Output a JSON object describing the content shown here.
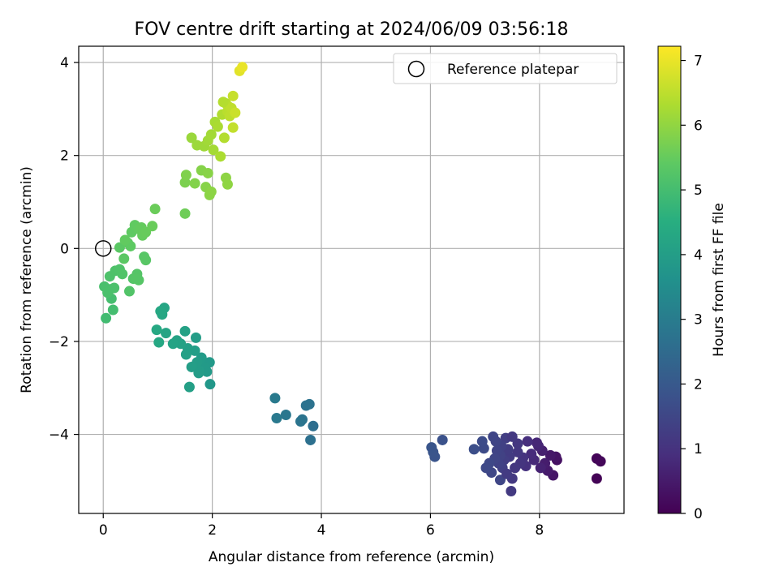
{
  "chart_data": {
    "type": "scatter",
    "title": "FOV centre drift starting at 2024/06/09 03:56:18",
    "xlabel": "Angular distance from reference (arcmin)",
    "ylabel": "Rotation from reference (arcmin)",
    "xlim": [
      -0.45,
      9.55
    ],
    "ylim": [
      -5.7,
      4.35
    ],
    "xticks": [
      0,
      2,
      4,
      6,
      8
    ],
    "yticks": [
      -4,
      -2,
      0,
      2,
      4
    ],
    "grid": true,
    "colormap": "viridis",
    "legend": {
      "placement": "upper right",
      "entries": [
        {
          "label": "Reference platepar",
          "marker": "open-circle",
          "x": 0,
          "y": 0
        }
      ]
    },
    "colorbar": {
      "label": "Hours from first FF file",
      "range": [
        0,
        7.22
      ],
      "ticks": [
        0,
        1,
        2,
        3,
        4,
        5,
        6,
        7
      ]
    },
    "points": [
      [
        9.05,
        -4.95,
        0.05
      ],
      [
        9.05,
        -4.52,
        0.08
      ],
      [
        9.12,
        -4.58,
        0.12
      ],
      [
        8.32,
        -4.55,
        0.3
      ],
      [
        8.3,
        -4.48,
        0.35
      ],
      [
        8.25,
        -4.88,
        0.4
      ],
      [
        8.2,
        -4.45,
        0.45
      ],
      [
        8.15,
        -4.78,
        0.5
      ],
      [
        8.1,
        -4.62,
        0.55
      ],
      [
        8.05,
        -4.35,
        0.6
      ],
      [
        8.02,
        -4.72,
        0.65
      ],
      [
        7.98,
        -4.25,
        0.7
      ],
      [
        7.95,
        -4.18,
        0.75
      ],
      [
        7.9,
        -4.55,
        0.8
      ],
      [
        7.85,
        -4.42,
        0.85
      ],
      [
        7.78,
        -4.15,
        0.9
      ],
      [
        7.75,
        -4.68,
        0.95
      ],
      [
        7.7,
        -4.5,
        1.0
      ],
      [
        7.65,
        -4.62,
        1.05
      ],
      [
        7.6,
        -4.38,
        1.1
      ],
      [
        7.55,
        -4.72,
        1.12
      ],
      [
        7.5,
        -4.95,
        1.15
      ],
      [
        7.48,
        -5.22,
        1.18
      ],
      [
        7.45,
        -4.48,
        1.2
      ],
      [
        7.42,
        -4.32,
        1.25
      ],
      [
        7.38,
        -4.08,
        1.28
      ],
      [
        7.35,
        -4.55,
        1.3
      ],
      [
        7.32,
        -4.72,
        1.33
      ],
      [
        7.3,
        -4.25,
        1.36
      ],
      [
        7.28,
        -4.45,
        1.38
      ],
      [
        7.25,
        -4.62,
        1.4
      ],
      [
        7.22,
        -4.35,
        1.42
      ],
      [
        7.2,
        -4.15,
        1.44
      ],
      [
        7.18,
        -4.52,
        1.46
      ],
      [
        7.15,
        -4.05,
        1.48
      ],
      [
        7.28,
        -4.98,
        1.5
      ],
      [
        7.12,
        -4.82,
        1.52
      ],
      [
        7.08,
        -4.62,
        1.55
      ],
      [
        7.02,
        -4.72,
        1.58
      ],
      [
        6.98,
        -4.3,
        1.62
      ],
      [
        6.95,
        -4.15,
        1.66
      ],
      [
        6.8,
        -4.32,
        1.7
      ],
      [
        7.4,
        -4.85,
        1.2
      ],
      [
        7.6,
        -4.2,
        1.1
      ],
      [
        7.5,
        -4.05,
        1.15
      ],
      [
        6.22,
        -4.12,
        1.8
      ],
      [
        6.08,
        -4.48,
        1.85
      ],
      [
        6.05,
        -4.38,
        1.88
      ],
      [
        6.02,
        -4.28,
        1.9
      ],
      [
        3.85,
        -3.82,
        2.6
      ],
      [
        3.8,
        -4.12,
        2.65
      ],
      [
        3.78,
        -3.35,
        2.7
      ],
      [
        3.72,
        -3.38,
        2.72
      ],
      [
        3.65,
        -3.68,
        2.75
      ],
      [
        3.62,
        -3.72,
        2.78
      ],
      [
        3.35,
        -3.58,
        2.85
      ],
      [
        3.18,
        -3.65,
        2.9
      ],
      [
        3.15,
        -3.22,
        2.95
      ],
      [
        1.96,
        -2.92,
        3.8
      ],
      [
        1.95,
        -2.45,
        3.85
      ],
      [
        1.9,
        -2.65,
        3.88
      ],
      [
        1.85,
        -2.55,
        3.9
      ],
      [
        1.8,
        -2.35,
        3.92
      ],
      [
        1.75,
        -2.62,
        3.94
      ],
      [
        1.72,
        -2.45,
        3.96
      ],
      [
        1.7,
        -1.92,
        3.98
      ],
      [
        1.68,
        -2.2,
        4.0
      ],
      [
        1.62,
        -2.55,
        4.02
      ],
      [
        1.58,
        -2.98,
        4.04
      ],
      [
        1.55,
        -2.15,
        4.06
      ],
      [
        1.52,
        -2.28,
        4.08
      ],
      [
        1.5,
        -1.78,
        4.1
      ],
      [
        1.42,
        -2.05,
        4.12
      ],
      [
        1.35,
        -1.98,
        4.14
      ],
      [
        1.28,
        -2.05,
        4.16
      ],
      [
        1.15,
        -1.82,
        4.2
      ],
      [
        1.12,
        -1.28,
        4.24
      ],
      [
        1.08,
        -1.42,
        4.26
      ],
      [
        1.05,
        -1.35,
        4.28
      ],
      [
        1.02,
        -2.02,
        4.3
      ],
      [
        0.98,
        -1.75,
        4.32
      ],
      [
        1.75,
        -2.68,
        3.95
      ],
      [
        0.05,
        -1.5,
        4.95
      ],
      [
        0.18,
        -1.32,
        5.0
      ],
      [
        0.15,
        -1.08,
        5.02
      ],
      [
        0.12,
        -0.88,
        5.05
      ],
      [
        0.02,
        -0.82,
        5.08
      ],
      [
        0.08,
        -0.95,
        5.1
      ],
      [
        0.2,
        -0.85,
        5.12
      ],
      [
        0.12,
        -0.6,
        5.14
      ],
      [
        0.22,
        -0.48,
        5.16
      ],
      [
        0.3,
        -0.45,
        5.18
      ],
      [
        0.35,
        -0.55,
        5.2
      ],
      [
        0.48,
        -0.92,
        5.22
      ],
      [
        0.55,
        -0.65,
        5.24
      ],
      [
        0.62,
        -0.55,
        5.26
      ],
      [
        0.65,
        -0.68,
        5.28
      ],
      [
        0.75,
        -0.18,
        5.3
      ],
      [
        0.78,
        -0.25,
        5.32
      ],
      [
        0.3,
        0.02,
        5.34
      ],
      [
        0.38,
        -0.22,
        5.36
      ],
      [
        0.45,
        0.12,
        5.38
      ],
      [
        0.5,
        0.05,
        5.4
      ],
      [
        0.52,
        0.35,
        5.42
      ],
      [
        0.58,
        0.5,
        5.44
      ],
      [
        0.65,
        0.42,
        5.46
      ],
      [
        0.7,
        0.45,
        5.48
      ],
      [
        0.72,
        0.28,
        5.5
      ],
      [
        0.78,
        0.35,
        5.52
      ],
      [
        0.9,
        0.48,
        5.54
      ],
      [
        0.95,
        0.85,
        5.56
      ],
      [
        1.5,
        0.75,
        5.6
      ],
      [
        0.4,
        0.18,
        5.45
      ],
      [
        0.6,
        -0.65,
        5.28
      ],
      [
        1.5,
        1.42,
        5.75
      ],
      [
        1.52,
        1.58,
        5.8
      ],
      [
        1.68,
        1.4,
        5.83
      ],
      [
        1.8,
        1.68,
        5.86
      ],
      [
        1.88,
        1.32,
        5.88
      ],
      [
        1.92,
        1.62,
        5.9
      ],
      [
        1.95,
        1.15,
        5.92
      ],
      [
        1.98,
        1.22,
        5.94
      ],
      [
        2.25,
        1.52,
        5.96
      ],
      [
        2.28,
        1.38,
        5.98
      ],
      [
        1.62,
        2.38,
        6.1
      ],
      [
        1.72,
        2.22,
        6.12
      ],
      [
        1.85,
        2.2,
        6.15
      ],
      [
        1.92,
        2.32,
        6.18
      ],
      [
        1.98,
        2.45,
        6.2
      ],
      [
        2.02,
        2.12,
        6.22
      ],
      [
        2.05,
        2.72,
        6.25
      ],
      [
        2.1,
        2.62,
        6.28
      ],
      [
        2.15,
        1.98,
        6.3
      ],
      [
        2.18,
        2.88,
        6.35
      ],
      [
        2.22,
        2.38,
        6.38
      ],
      [
        2.25,
        3.12,
        6.42
      ],
      [
        2.28,
        2.95,
        6.45
      ],
      [
        2.3,
        3.05,
        6.48
      ],
      [
        2.32,
        2.85,
        6.5
      ],
      [
        2.35,
        3.02,
        6.52
      ],
      [
        2.38,
        2.6,
        6.55
      ],
      [
        2.38,
        3.28,
        6.6
      ],
      [
        2.42,
        2.92,
        6.65
      ],
      [
        2.5,
        3.82,
        6.9
      ],
      [
        2.55,
        3.9,
        7.0
      ],
      [
        2.2,
        3.15,
        6.4
      ]
    ]
  }
}
